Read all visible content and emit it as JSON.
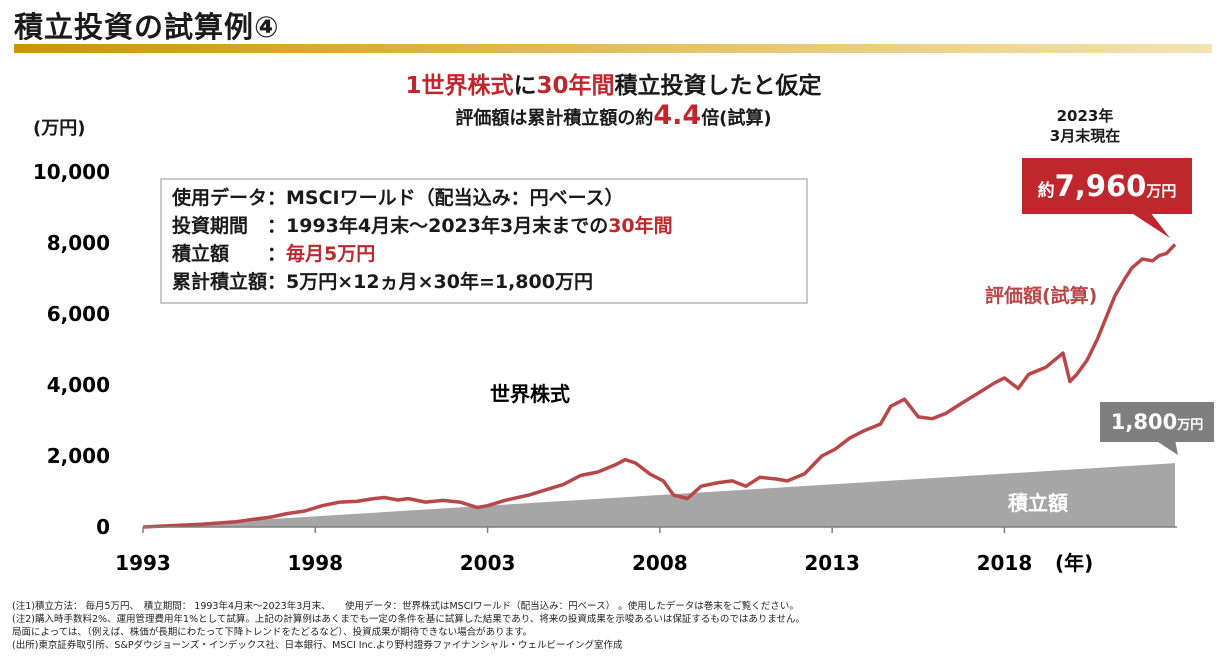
{
  "title": "積立投資の試算例④",
  "headline": {
    "line1_red1": "1世界株式",
    "line1_black1": "に",
    "line1_red2": "30年間",
    "line1_black2": "積立投資したと仮定",
    "line2_pre": "評価額は累計積立額の約",
    "line2_num": "4.4",
    "line2_post": "倍(試算)"
  },
  "unit_label": "(万円)",
  "as_of": [
    "2023年",
    "3月末現在"
  ],
  "info_box": {
    "row1": "使用データ：MSCIワールド（配当込み：円ベース）",
    "row2_pre": "投資期間　：1993年4月末～2023年3月末までの",
    "row2_red": "30年間",
    "row3_pre": "積立額　　：",
    "row3_red": "毎月5万円",
    "row4": "累計積立額：5万円×12ヵ月×30年=1,800万円"
  },
  "callout_value": {
    "prefix": "約",
    "number": "7,960",
    "suffix": "万円"
  },
  "callout_principal": {
    "number": "1,800",
    "suffix": "万円"
  },
  "colors": {
    "value_line": "#b8474a",
    "principal_area": "#a6a6a6",
    "accent_red": "#c0272d",
    "title_bar": "#c8960c"
  },
  "chart_data": {
    "type": "area",
    "ylabel": "(万円)",
    "xlabel": "(年)",
    "ylim": [
      0,
      10000
    ],
    "y_ticks": [
      0,
      2000,
      4000,
      6000,
      8000,
      10000
    ],
    "y_tick_labels": [
      "0",
      "2,000",
      "4,000",
      "6,000",
      "8,000",
      "10,000"
    ],
    "x_ticks": [
      1993,
      1998,
      2003,
      2008,
      2013,
      2018
    ],
    "x_tick_labels": [
      "1993",
      "1998",
      "2003",
      "2008",
      "2013",
      "2018"
    ],
    "x_unit_label": "(年)",
    "xlim": [
      1993.3,
      2023.25
    ],
    "grid": false,
    "series": [
      {
        "name": "評価額(試算)",
        "kind": "line",
        "label_text": "評価額(試算)",
        "label_color": "#b8474a",
        "x": [
          1993.3,
          1994,
          1995,
          1996,
          1997,
          1997.5,
          1998,
          1998.5,
          1999,
          1999.5,
          2000,
          2000.3,
          2000.7,
          2001,
          2001.5,
          2002,
          2002.5,
          2003,
          2003.3,
          2003.8,
          2004.5,
          2005,
          2005.5,
          2006,
          2006.5,
          2007,
          2007.3,
          2007.6,
          2008,
          2008.4,
          2008.7,
          2009.1,
          2009.5,
          2010,
          2010.4,
          2010.8,
          2011.2,
          2011.7,
          2012,
          2012.5,
          2013,
          2013.4,
          2013.8,
          2014.2,
          2014.7,
          2015,
          2015.4,
          2015.8,
          2016.2,
          2016.6,
          2017,
          2017.5,
          2018,
          2018.3,
          2018.7,
          2019,
          2019.5,
          2020,
          2020.2,
          2020.4,
          2020.7,
          2021,
          2021.5,
          2021.8,
          2022,
          2022.3,
          2022.6,
          2022.8,
          2023,
          2023.25
        ],
        "y": [
          0,
          30,
          80,
          150,
          280,
          380,
          450,
          600,
          700,
          720,
          800,
          830,
          760,
          800,
          700,
          750,
          700,
          550,
          600,
          750,
          900,
          1050,
          1200,
          1450,
          1550,
          1750,
          1900,
          1800,
          1500,
          1300,
          900,
          800,
          1150,
          1250,
          1300,
          1150,
          1400,
          1350,
          1300,
          1500,
          2000,
          2200,
          2500,
          2700,
          2900,
          3400,
          3600,
          3100,
          3050,
          3200,
          3450,
          3750,
          4050,
          4200,
          3900,
          4300,
          4500,
          4900,
          4100,
          4300,
          4700,
          5300,
          6500,
          7000,
          7300,
          7550,
          7500,
          7650,
          7700,
          7960
        ]
      },
      {
        "name": "積立額",
        "kind": "area",
        "label_text": "積立額",
        "x": [
          1993.3,
          2023.25
        ],
        "y": [
          0,
          1800
        ]
      }
    ],
    "annotations": [
      {
        "text": "世界株式"
      }
    ]
  },
  "notes": [
    "(注1)積立方法：  毎月5万円、　積立期間：  1993年4月末～2023年3月末、　　使用データ：世界株式はMSCIワールド（配当込み：円ベース）  。使用したデータは巻末をご覧ください。",
    "(注2)購入時手数料2%、運用管理費用年1%として試算。上記の計算例はあくまでも一定の条件を基に試算した結果であり、将来の投資成果を示唆あるいは保証するものではありません。",
    "局面によっては、（例えば、株価が長期にわたって下降トレンドをたどるなど）、投資成果が期待できない場合があります。",
    "(出所)東京証券取引所、S&Pダウジョーンズ・インデックス社、日本銀行、MSCI  Inc.より野村證券ファイナンシャル・ウェルビーイング室作成"
  ]
}
